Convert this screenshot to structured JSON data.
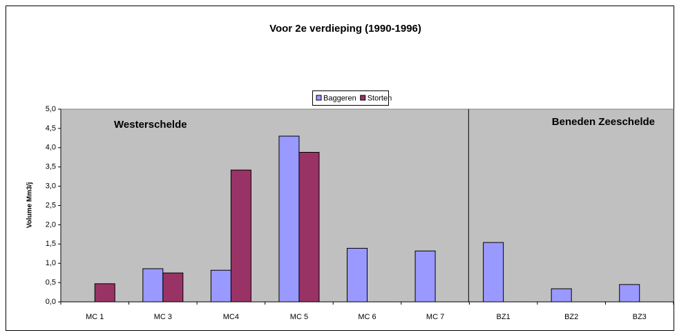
{
  "chart_data": {
    "type": "bar",
    "title": "Voor 2e verdieping (1990-1996)",
    "y_label": "Volume Mm3/j",
    "categories": [
      "MC 1",
      "MC 3",
      "MC4",
      "MC 5",
      "MC 6",
      "MC 7",
      "BZ1",
      "BZ2",
      "BZ3"
    ],
    "series": [
      {
        "name": "Baggeren",
        "color": "#9999ff",
        "values": [
          null,
          0.86,
          0.82,
          4.3,
          1.39,
          1.32,
          1.54,
          0.34,
          0.45
        ]
      },
      {
        "name": "Storten",
        "color": "#993366",
        "values": [
          0.47,
          0.75,
          3.42,
          3.88,
          null,
          null,
          null,
          null,
          null
        ]
      }
    ],
    "ylim": [
      0,
      5
    ],
    "yticks": [
      {
        "value": 0,
        "label": "0,0"
      },
      {
        "value": 0.5,
        "label": "0,5"
      },
      {
        "value": 1,
        "label": "1,0"
      },
      {
        "value": 1.5,
        "label": "1,5"
      },
      {
        "value": 2,
        "label": "2,0"
      },
      {
        "value": 2.5,
        "label": "2,5"
      },
      {
        "value": 3,
        "label": "3,0"
      },
      {
        "value": 3.5,
        "label": "3,5"
      },
      {
        "value": 4,
        "label": "4,0"
      },
      {
        "value": 4.5,
        "label": "4,5"
      },
      {
        "value": 5,
        "label": "5,0"
      }
    ],
    "annotations": [
      "Westerschelde",
      "Beneden Zeeschelde"
    ],
    "legend": "top",
    "plot_background": "#c0c0c0"
  }
}
